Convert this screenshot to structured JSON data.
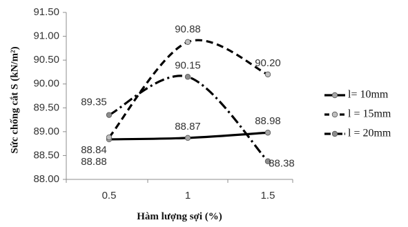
{
  "chart_data": {
    "type": "line",
    "title": "",
    "xlabel": "Hàm lượng sợi (%)",
    "ylabel": "Sức chống cắt S (kN/m²)",
    "categories": [
      "0.5",
      "1",
      "1.5"
    ],
    "ylim": [
      88.0,
      91.5
    ],
    "yticks": [
      "88.00",
      "88.50",
      "89.00",
      "89.50",
      "90.00",
      "90.50",
      "91.00",
      "91.50"
    ],
    "grid": false,
    "legend_position": "right",
    "series": [
      {
        "name": "l= 10mm",
        "values": [
          88.84,
          88.87,
          88.98
        ],
        "labels": [
          "88.84",
          "88.87",
          "88.98"
        ],
        "style": "solid",
        "color": "#000000",
        "marker_color": "#a6a6a6"
      },
      {
        "name": "l = 15mm",
        "values": [
          88.88,
          90.88,
          90.2
        ],
        "labels": [
          "88.88",
          "90.88",
          "90.20"
        ],
        "style": "dashed",
        "color": "#000000",
        "marker_color": "#bfbfbf"
      },
      {
        "name": "l = 20mm",
        "values": [
          89.35,
          90.15,
          88.38
        ],
        "labels": [
          "89.35",
          "90.15",
          "88.38"
        ],
        "style": "dashdot",
        "color": "#000000",
        "marker_color": "#8c8c8c"
      }
    ]
  }
}
